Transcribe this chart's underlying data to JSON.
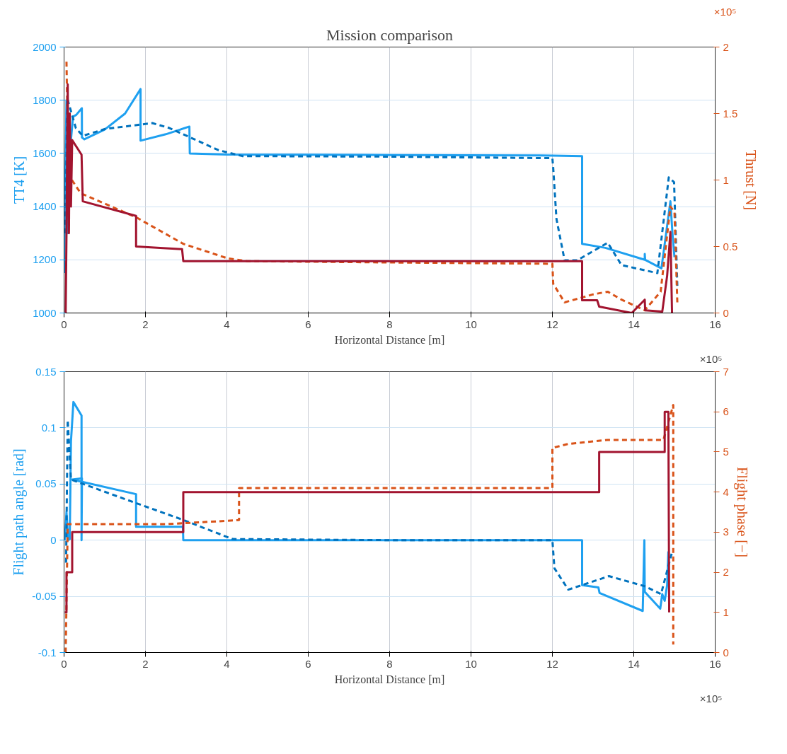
{
  "chart_data": [
    {
      "type": "line",
      "title": "Mission comparison",
      "xlabel": "Horizontal Distance [m]",
      "ylabel": "TT4 [K]",
      "y2label": "Thrust [N]",
      "annotations": [
        "×10⁵",
        "×10⁵"
      ],
      "xlim": [
        0,
        16
      ],
      "xticks": [
        0,
        2,
        4,
        6,
        8,
        10,
        12,
        14,
        16
      ],
      "ylim": [
        1000,
        2000
      ],
      "yticks": [
        1000,
        1200,
        1400,
        1600,
        1800,
        2000
      ],
      "y2lim": [
        0,
        2
      ],
      "y2ticks": [
        0,
        0.5,
        1,
        1.5,
        2
      ],
      "grid": true,
      "series": [
        {
          "color": "#1ea0f0",
          "line_style": "solid",
          "x": [
            0,
            0.06,
            0.09,
            0.14,
            0.22,
            0.3,
            0.437,
            0.44,
            0.5,
            1.0,
            1.5,
            1.88,
            1.88,
            2.5,
            3.08,
            3.09,
            4.0,
            8.0,
            12.0,
            12.73,
            12.73,
            13.3,
            14.27,
            14.27,
            14.28,
            14.68,
            14.9,
            14.95,
            15.0
          ],
          "values": [
            1150,
            1800,
            1300,
            1600,
            1738,
            1745,
            1770,
            1660,
            1653,
            1690,
            1750,
            1842,
            1648,
            1672,
            1701,
            1600,
            1596,
            1594,
            1592,
            1590,
            1260,
            1245,
            1200,
            1222,
            1200,
            1168,
            1420,
            1300,
            1210
          ]
        },
        {
          "color": "#0072bd",
          "line_style": "dashed",
          "x": [
            0.03,
            0.08,
            0.29,
            0.46,
            1.01,
            2.17,
            2.58,
            3.8,
            4.38,
            8.0,
            12.0,
            12.02,
            12.1,
            12.3,
            12.61,
            13.36,
            13.7,
            14.58,
            14.86,
            14.99,
            15.07
          ],
          "values": [
            1300,
            1807,
            1695,
            1666,
            1692,
            1714,
            1696,
            1612,
            1590,
            1588,
            1582,
            1546,
            1354,
            1198,
            1198,
            1264,
            1180,
            1150,
            1510,
            1492,
            1102
          ]
        },
        {
          "color": "#d95319",
          "line_style": "dashed",
          "axis": "y2",
          "x": [
            0.06,
            0.08,
            0.17,
            0.41,
            1.77,
            2.93,
            4.03,
            4.5,
            8.0,
            12.0,
            12.02,
            12.3,
            13.0,
            13.36,
            13.7,
            14.27,
            14.66,
            14.9,
            15.0,
            15.07
          ],
          "values": [
            1.89,
            1.53,
            1.01,
            0.9,
            0.72,
            0.52,
            0.41,
            0.39,
            0.38,
            0.37,
            0.22,
            0.08,
            0.14,
            0.16,
            0.1,
            0.02,
            0.16,
            0.8,
            0.76,
            0.08
          ]
        },
        {
          "color": "#a2142f",
          "line_style": "solid",
          "axis": "y2",
          "x": [
            0.04,
            0.06,
            0.09,
            0.12,
            0.14,
            0.17,
            0.2,
            0.43,
            0.46,
            1.77,
            1.77,
            2.9,
            2.93,
            6.0,
            12.73,
            12.73,
            13.1,
            13.15,
            13.95,
            14.27,
            14.28,
            14.7,
            14.82,
            14.9,
            14.94
          ],
          "values": [
            0,
            0.6,
            1.72,
            0.6,
            1.5,
            0.8,
            1.3,
            1.19,
            0.84,
            0.73,
            0.5,
            0.48,
            0.39,
            0.39,
            0.39,
            0.096,
            0.096,
            0.048,
            0,
            0.1,
            0.02,
            0.01,
            0.28,
            0.61,
            0
          ]
        }
      ]
    },
    {
      "type": "line",
      "xlabel": "Horizontal Distance [m]",
      "ylabel": "Flight path angle [rad]",
      "y2label": "Flight phase [−]",
      "annotations": [
        "×10⁵"
      ],
      "xlim": [
        0,
        16
      ],
      "xticks": [
        0,
        2,
        4,
        6,
        8,
        10,
        12,
        14,
        16
      ],
      "ylim": [
        -0.1,
        0.15
      ],
      "yticks": [
        -0.1,
        -0.05,
        0,
        0.05,
        0.1,
        0.15
      ],
      "y2lim": [
        0,
        7
      ],
      "y2ticks": [
        0,
        1,
        2,
        3,
        4,
        5,
        6,
        7
      ],
      "grid": true,
      "series": [
        {
          "color": "#1ea0f0",
          "line_style": "solid",
          "x": [
            0.02,
            0.06,
            0.1,
            0.14,
            0.17,
            0.23,
            0.43,
            0.43,
            0.44,
            0.2,
            1.77,
            1.77,
            2.92,
            2.93,
            8.0,
            12.73,
            12.73,
            13.13,
            13.16,
            14.22,
            14.26,
            14.27,
            14.65,
            14.7,
            14.76,
            14.82,
            14.85
          ],
          "values": [
            0,
            0.025,
            0.0,
            0.001,
            0.088,
            0.123,
            0.111,
            0.0,
            0.055,
            0.054,
            0.041,
            0.012,
            0.012,
            0.0,
            0.0,
            0.0,
            -0.04,
            -0.042,
            -0.047,
            -0.063,
            0.0,
            -0.046,
            -0.061,
            -0.048,
            -0.054,
            -0.04,
            -0.01
          ]
        },
        {
          "color": "#0072bd",
          "line_style": "dashed",
          "x": [
            0.05,
            0.09,
            0.17,
            1.77,
            2.93,
            4.14,
            8.0,
            12.0,
            12.05,
            12.39,
            12.73,
            13.39,
            14.27,
            14.67,
            14.93
          ],
          "values": [
            -0.02,
            0.107,
            0.054,
            0.033,
            0.018,
            0.001,
            0.0,
            0.0,
            -0.025,
            -0.044,
            -0.04,
            -0.032,
            -0.041,
            -0.048,
            -0.012
          ]
        },
        {
          "color": "#d95319",
          "line_style": "dashed",
          "axis": "y2",
          "x": [
            0.04,
            0.09,
            2.52,
            4.3,
            4.3,
            12.0,
            12.0,
            12.39,
            13.36,
            14.73,
            14.97,
            14.97
          ],
          "values": [
            0,
            3.2,
            3.2,
            3.3,
            4.1,
            4.1,
            5.1,
            5.2,
            5.3,
            5.3,
            6.17,
            0.2
          ]
        },
        {
          "color": "#a2142f",
          "line_style": "solid",
          "axis": "y2",
          "x": [
            0.02,
            0.06,
            0.06,
            0.2,
            0.2,
            2.93,
            2.93,
            13.15,
            13.15,
            14.76,
            14.76,
            14.85,
            14.87
          ],
          "values": [
            1,
            1,
            2,
            2,
            3,
            3,
            4,
            4,
            5,
            5,
            6,
            6,
            1
          ]
        }
      ]
    }
  ]
}
